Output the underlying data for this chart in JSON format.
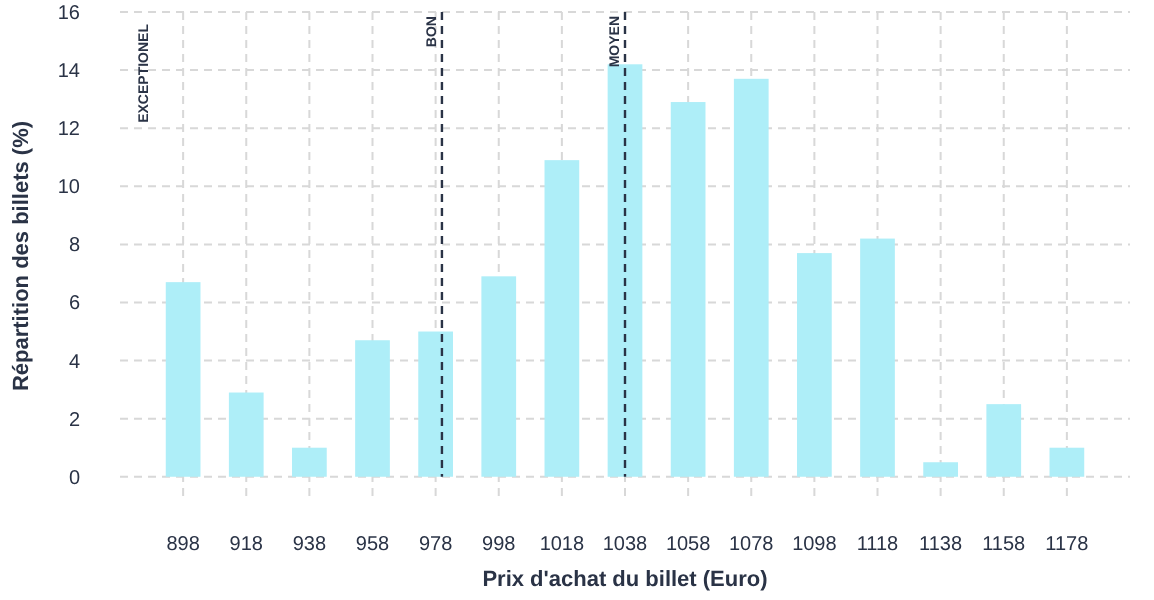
{
  "chart_data": {
    "type": "bar",
    "xlabel": "Prix d'achat du billet (Euro)",
    "ylabel": "Répartition des billets (%)",
    "x": [
      898,
      918,
      938,
      958,
      978,
      998,
      1018,
      1038,
      1058,
      1078,
      1098,
      1118,
      1138,
      1158,
      1178
    ],
    "values": [
      6.7,
      2.9,
      1.0,
      4.7,
      5.0,
      6.9,
      10.9,
      14.2,
      12.9,
      13.7,
      7.7,
      8.2,
      0.5,
      2.5,
      1.0
    ],
    "color": "#aeeef8",
    "xlim": [
      878,
      1198
    ],
    "xticks": [
      898,
      918,
      938,
      958,
      978,
      998,
      1018,
      1038,
      1058,
      1078,
      1098,
      1118,
      1138,
      1158,
      1178
    ],
    "ylim": [
      -0.8,
      16
    ],
    "yticks": [
      0,
      2,
      4,
      6,
      8,
      10,
      12,
      14,
      16
    ],
    "grid": true,
    "ref_lines": [
      {
        "axis": "x",
        "value": 980,
        "label": "BON",
        "color": "#2a3346",
        "line_style": "dashed"
      },
      {
        "axis": "x",
        "value": 1038,
        "label": "MOYEN",
        "color": "#2a3346",
        "line_style": "dashed"
      }
    ],
    "annotations": [
      "EXCEPTIONEL"
    ]
  }
}
